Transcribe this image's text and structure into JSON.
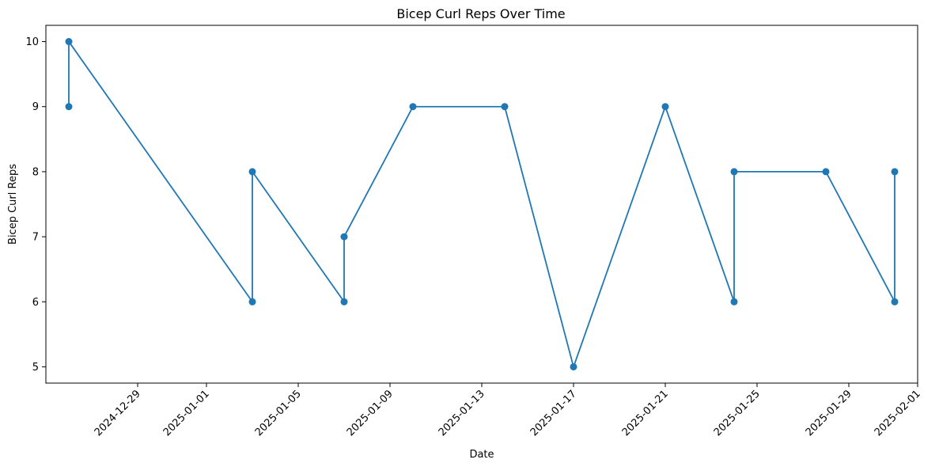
{
  "chart_data": {
    "type": "line",
    "title": "Bicep Curl Reps Over Time",
    "xlabel": "Date",
    "ylabel": "Bicep Curl Reps",
    "grid": false,
    "legend": "none",
    "colors": {
      "series": "#1f77b4",
      "axis": "#000000",
      "background": "#ffffff"
    },
    "xlim": [
      "2024-12-25",
      "2025-02-01"
    ],
    "ylim": [
      4.75,
      10.25
    ],
    "x_ticks": [
      "2024-12-29",
      "2025-01-01",
      "2025-01-05",
      "2025-01-09",
      "2025-01-13",
      "2025-01-17",
      "2025-01-21",
      "2025-01-25",
      "2025-01-29",
      "2025-02-01"
    ],
    "y_ticks": [
      5,
      6,
      7,
      8,
      9,
      10
    ],
    "series": [
      {
        "marker": "circle",
        "points": [
          {
            "x": "2024-12-26",
            "y": 9
          },
          {
            "x": "2024-12-26",
            "y": 10
          },
          {
            "x": "2025-01-03",
            "y": 6
          },
          {
            "x": "2025-01-03",
            "y": 8
          },
          {
            "x": "2025-01-07",
            "y": 6
          },
          {
            "x": "2025-01-07",
            "y": 7
          },
          {
            "x": "2025-01-10",
            "y": 9
          },
          {
            "x": "2025-01-14",
            "y": 9
          },
          {
            "x": "2025-01-17",
            "y": 5
          },
          {
            "x": "2025-01-21",
            "y": 9
          },
          {
            "x": "2025-01-24",
            "y": 6
          },
          {
            "x": "2025-01-24",
            "y": 8
          },
          {
            "x": "2025-01-28",
            "y": 8
          },
          {
            "x": "2025-01-31",
            "y": 6
          },
          {
            "x": "2025-01-31",
            "y": 8
          }
        ]
      }
    ]
  }
}
